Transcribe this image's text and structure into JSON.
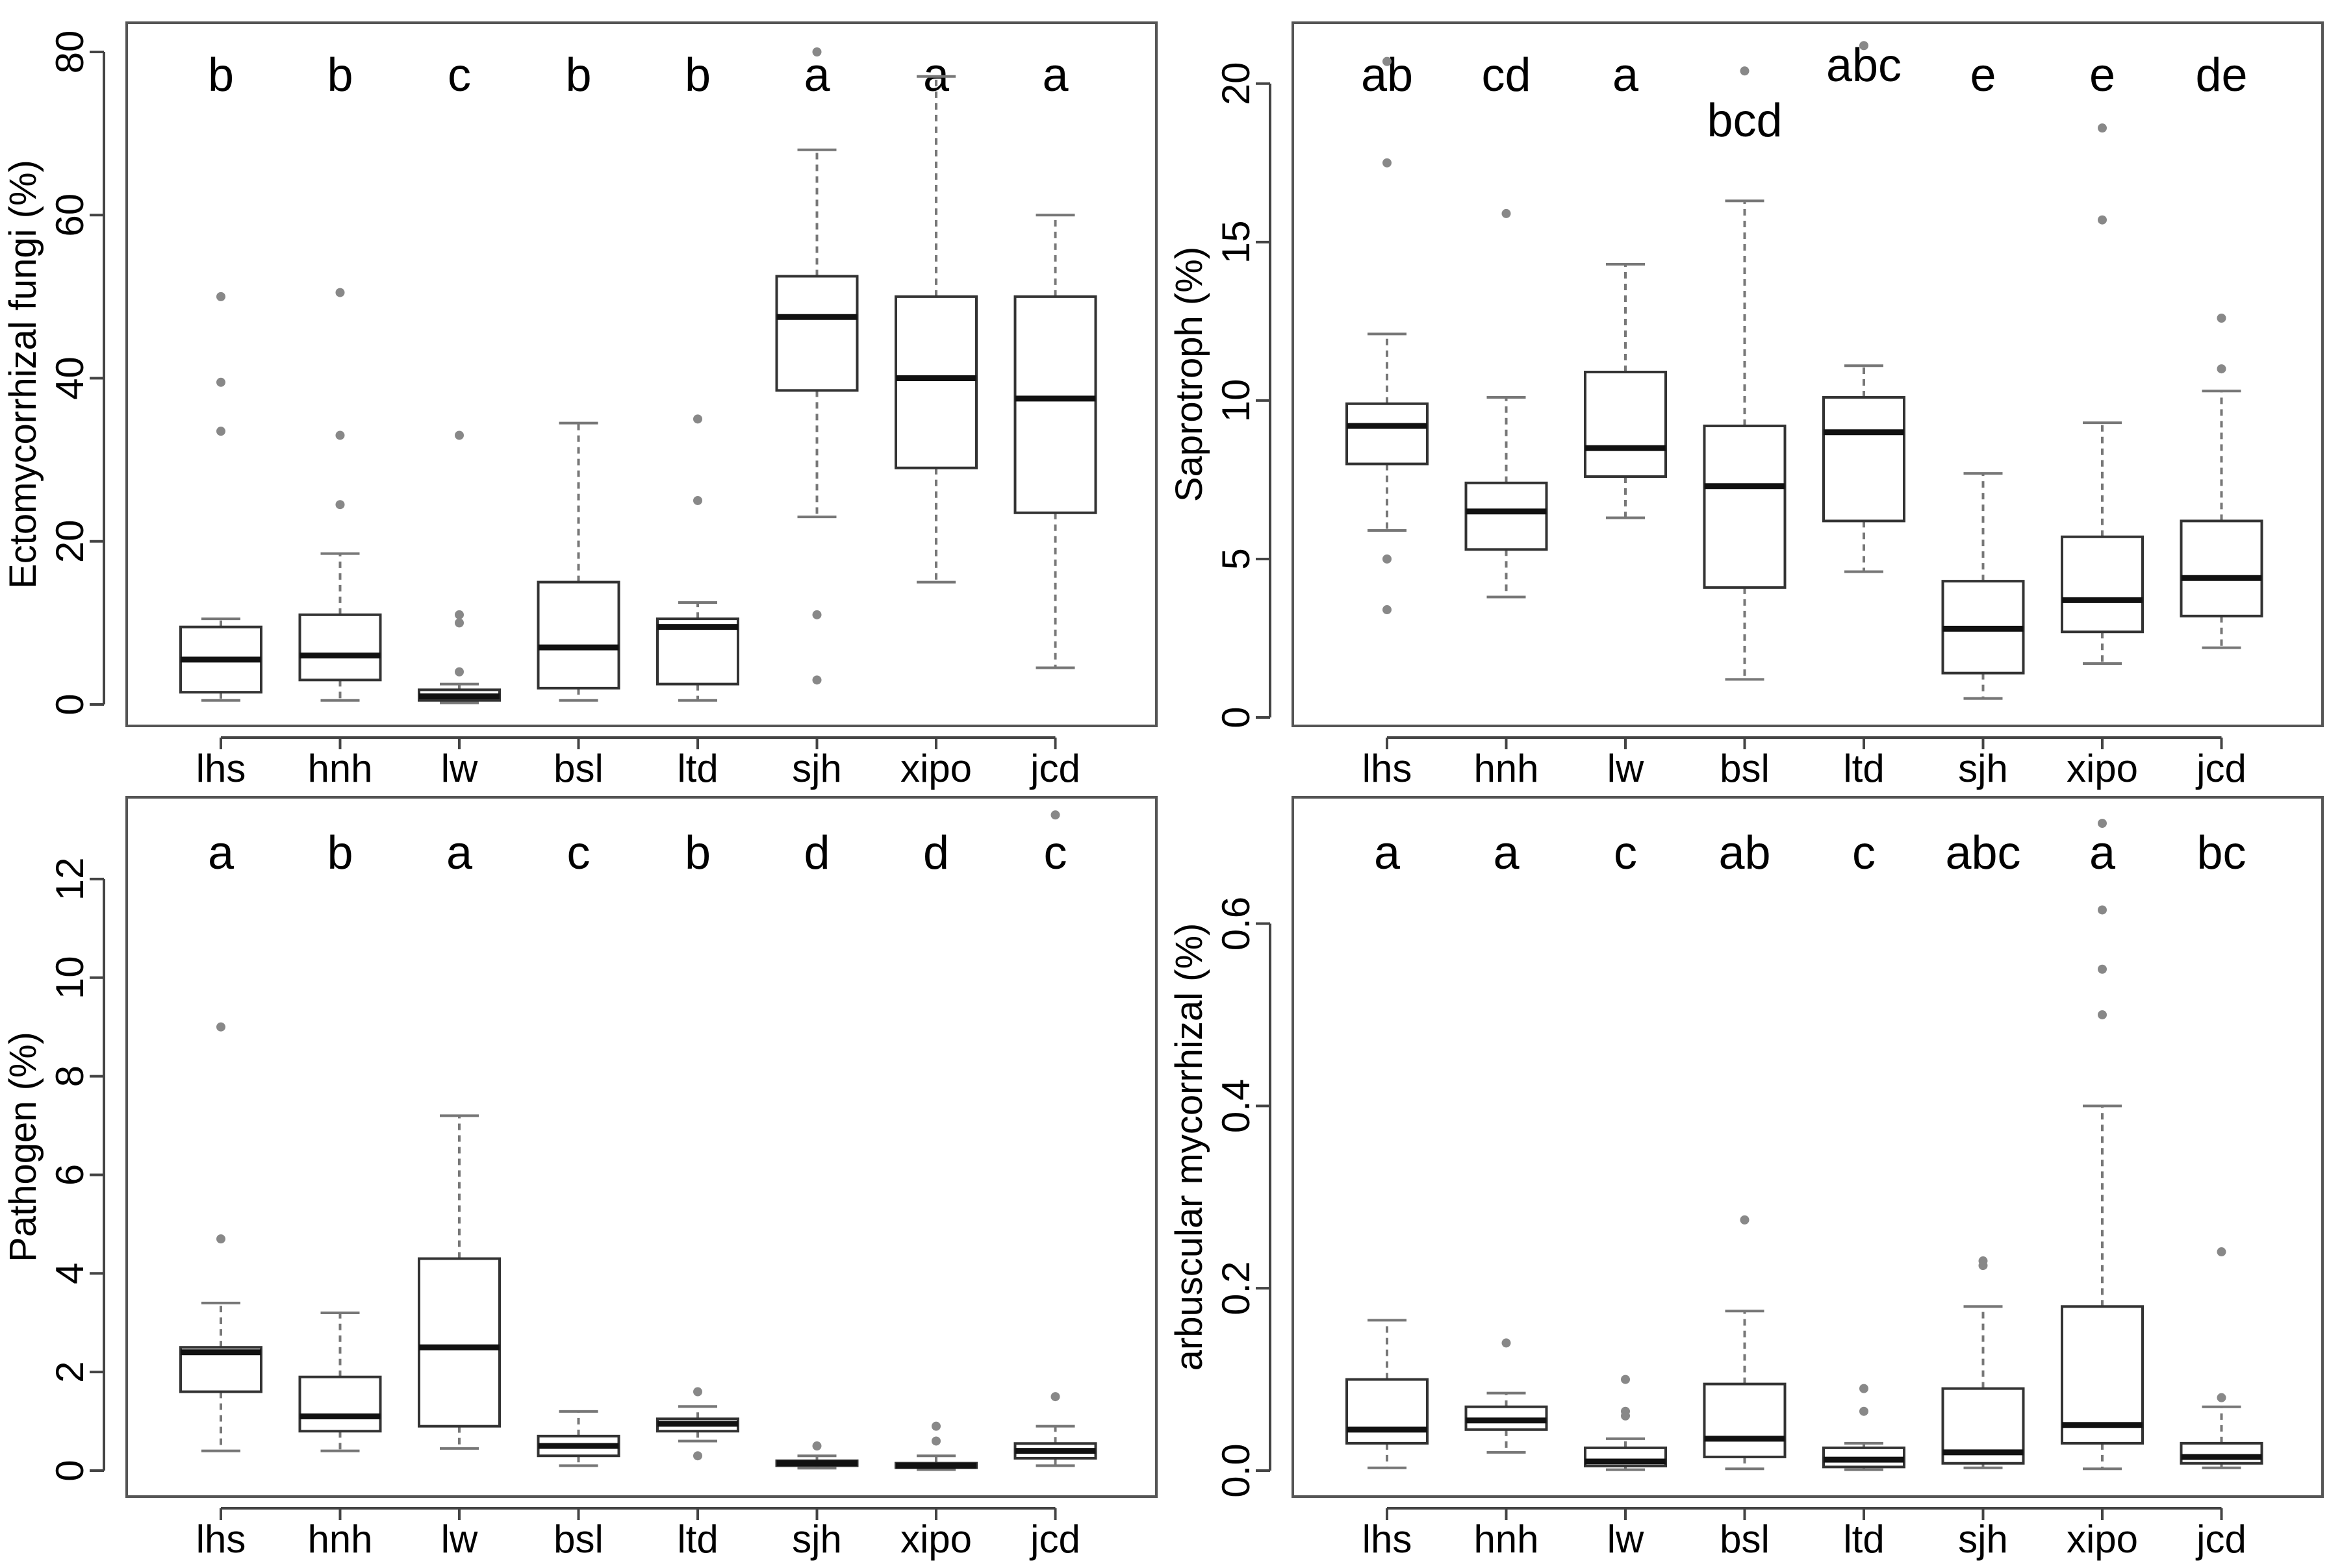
{
  "figure": {
    "layout": "2x2 box plots",
    "box_color": "#333333",
    "whisker_color": "#777777",
    "outlier_color": "#888888"
  },
  "chart_data": [
    {
      "type": "box",
      "title": "",
      "xlabel": "",
      "ylabel": "Ectomycorrhizal fungi (%)",
      "ylim": [
        0,
        80
      ],
      "yticks": [
        0,
        20,
        40,
        60,
        80
      ],
      "categories": [
        "lhs",
        "hnh",
        "lw",
        "bsl",
        "ltd",
        "sjh",
        "xipo",
        "jcd"
      ],
      "letters": [
        "b",
        "b",
        "c",
        "b",
        "b",
        "a",
        "a",
        "a"
      ],
      "boxes": [
        {
          "min": 0.5,
          "q1": 1.5,
          "median": 5.5,
          "q3": 9.5,
          "max": 10.5,
          "outliers": [
            33.5,
            39.5,
            50
          ]
        },
        {
          "min": 0.5,
          "q1": 3,
          "median": 6,
          "q3": 11,
          "max": 18.5,
          "outliers": [
            24.5,
            33,
            50.5
          ]
        },
        {
          "min": 0.2,
          "q1": 0.5,
          "median": 1,
          "q3": 1.8,
          "max": 2.5,
          "outliers": [
            4,
            10,
            11,
            33
          ]
        },
        {
          "min": 0.5,
          "q1": 2,
          "median": 7,
          "q3": 15,
          "max": 34.5,
          "outliers": []
        },
        {
          "min": 0.5,
          "q1": 2.5,
          "median": 9.5,
          "q3": 10.5,
          "max": 12.5,
          "outliers": [
            25,
            35
          ]
        },
        {
          "min": 23,
          "q1": 38.5,
          "median": 47.5,
          "q3": 52.5,
          "max": 68,
          "outliers": [
            3,
            11,
            80
          ]
        },
        {
          "min": 15,
          "q1": 29,
          "median": 40,
          "q3": 50,
          "max": 77,
          "outliers": []
        },
        {
          "min": 4.5,
          "q1": 23.5,
          "median": 37.5,
          "q3": 50,
          "max": 60,
          "outliers": []
        }
      ]
    },
    {
      "type": "box",
      "title": "",
      "xlabel": "",
      "ylabel": "Saprotroph (%)",
      "ylim": [
        0,
        21
      ],
      "yticks": [
        0,
        5,
        10,
        15,
        20
      ],
      "categories": [
        "lhs",
        "hnh",
        "lw",
        "bsl",
        "ltd",
        "sjh",
        "xipo",
        "jcd"
      ],
      "letters": [
        "ab",
        "cd",
        "a",
        "bcd",
        "abc",
        "e",
        "e",
        "de"
      ],
      "boxes": [
        {
          "min": 5.9,
          "q1": 8,
          "median": 9.2,
          "q3": 9.9,
          "max": 12.1,
          "outliers": [
            3.4,
            5,
            17.5,
            20.7
          ]
        },
        {
          "min": 3.8,
          "q1": 5.3,
          "median": 6.5,
          "q3": 7.4,
          "max": 10.1,
          "outliers": [
            15.9
          ]
        },
        {
          "min": 6.3,
          "q1": 7.6,
          "median": 8.5,
          "q3": 10.9,
          "max": 14.3,
          "outliers": []
        },
        {
          "min": 1.2,
          "q1": 4.1,
          "median": 7.3,
          "q3": 9.2,
          "max": 16.3,
          "outliers": [
            20.4
          ]
        },
        {
          "min": 4.6,
          "q1": 6.2,
          "median": 9,
          "q3": 10.1,
          "max": 11.1,
          "outliers": [
            21.2
          ]
        },
        {
          "min": 0.6,
          "q1": 1.4,
          "median": 2.8,
          "q3": 4.3,
          "max": 7.7,
          "outliers": []
        },
        {
          "min": 1.7,
          "q1": 2.7,
          "median": 3.7,
          "q3": 5.7,
          "max": 9.3,
          "outliers": [
            15.7,
            18.6
          ]
        },
        {
          "min": 2.2,
          "q1": 3.2,
          "median": 4.4,
          "q3": 6.2,
          "max": 10.3,
          "outliers": [
            11,
            12.6
          ]
        }
      ]
    },
    {
      "type": "box",
      "title": "",
      "xlabel": "",
      "ylabel": "Pathogen (%)",
      "ylim": [
        0,
        13.5
      ],
      "yticks": [
        0,
        2,
        4,
        6,
        8,
        10,
        12
      ],
      "categories": [
        "lhs",
        "hnh",
        "lw",
        "bsl",
        "ltd",
        "sjh",
        "xipo",
        "jcd"
      ],
      "letters": [
        "a",
        "b",
        "a",
        "c",
        "b",
        "d",
        "d",
        "c"
      ],
      "boxes": [
        {
          "min": 0.4,
          "q1": 1.6,
          "median": 2.4,
          "q3": 2.5,
          "max": 3.4,
          "outliers": [
            4.7,
            9
          ]
        },
        {
          "min": 0.4,
          "q1": 0.8,
          "median": 1.1,
          "q3": 1.9,
          "max": 3.2,
          "outliers": []
        },
        {
          "min": 0.45,
          "q1": 0.9,
          "median": 2.5,
          "q3": 4.3,
          "max": 7.2,
          "outliers": []
        },
        {
          "min": 0.1,
          "q1": 0.3,
          "median": 0.5,
          "q3": 0.7,
          "max": 1.2,
          "outliers": []
        },
        {
          "min": 0.6,
          "q1": 0.8,
          "median": 0.95,
          "q3": 1.05,
          "max": 1.3,
          "outliers": [
            0.3,
            1.6
          ]
        },
        {
          "min": 0.05,
          "q1": 0.1,
          "median": 0.15,
          "q3": 0.2,
          "max": 0.3,
          "outliers": [
            0.5
          ]
        },
        {
          "min": 0.02,
          "q1": 0.06,
          "median": 0.1,
          "q3": 0.15,
          "max": 0.3,
          "outliers": [
            0.6,
            0.9
          ]
        },
        {
          "min": 0.1,
          "q1": 0.25,
          "median": 0.4,
          "q3": 0.55,
          "max": 0.9,
          "outliers": [
            1.5,
            13.3
          ]
        }
      ]
    },
    {
      "type": "box",
      "title": "",
      "xlabel": "",
      "ylabel": "arbuscular mycorrhizal (%)",
      "ylim": [
        0,
        0.73
      ],
      "yticks": [
        "0.0",
        "0.2",
        "0.4",
        "0.6"
      ],
      "categories": [
        "lhs",
        "hnh",
        "lw",
        "bsl",
        "ltd",
        "sjh",
        "xipo",
        "jcd"
      ],
      "letters": [
        "a",
        "a",
        "c",
        "ab",
        "c",
        "abc",
        "a",
        "bc"
      ],
      "boxes": [
        {
          "min": 0.003,
          "q1": 0.03,
          "median": 0.045,
          "q3": 0.1,
          "max": 0.165,
          "outliers": []
        },
        {
          "min": 0.02,
          "q1": 0.045,
          "median": 0.055,
          "q3": 0.07,
          "max": 0.085,
          "outliers": [
            0.14
          ]
        },
        {
          "min": 0.001,
          "q1": 0.005,
          "median": 0.01,
          "q3": 0.025,
          "max": 0.035,
          "outliers": [
            0.06,
            0.065,
            0.1
          ]
        },
        {
          "min": 0.002,
          "q1": 0.015,
          "median": 0.035,
          "q3": 0.095,
          "max": 0.175,
          "outliers": [
            0.275
          ]
        },
        {
          "min": 0.001,
          "q1": 0.004,
          "median": 0.012,
          "q3": 0.025,
          "max": 0.03,
          "outliers": [
            0.065,
            0.09
          ]
        },
        {
          "min": 0.003,
          "q1": 0.008,
          "median": 0.02,
          "q3": 0.09,
          "max": 0.18,
          "outliers": [
            0.225,
            0.23
          ]
        },
        {
          "min": 0.002,
          "q1": 0.03,
          "median": 0.05,
          "q3": 0.18,
          "max": 0.4,
          "outliers": [
            0.5,
            0.55,
            0.615,
            0.71
          ]
        },
        {
          "min": 0.003,
          "q1": 0.008,
          "median": 0.015,
          "q3": 0.03,
          "max": 0.07,
          "outliers": [
            0.08,
            0.24
          ]
        }
      ]
    }
  ]
}
